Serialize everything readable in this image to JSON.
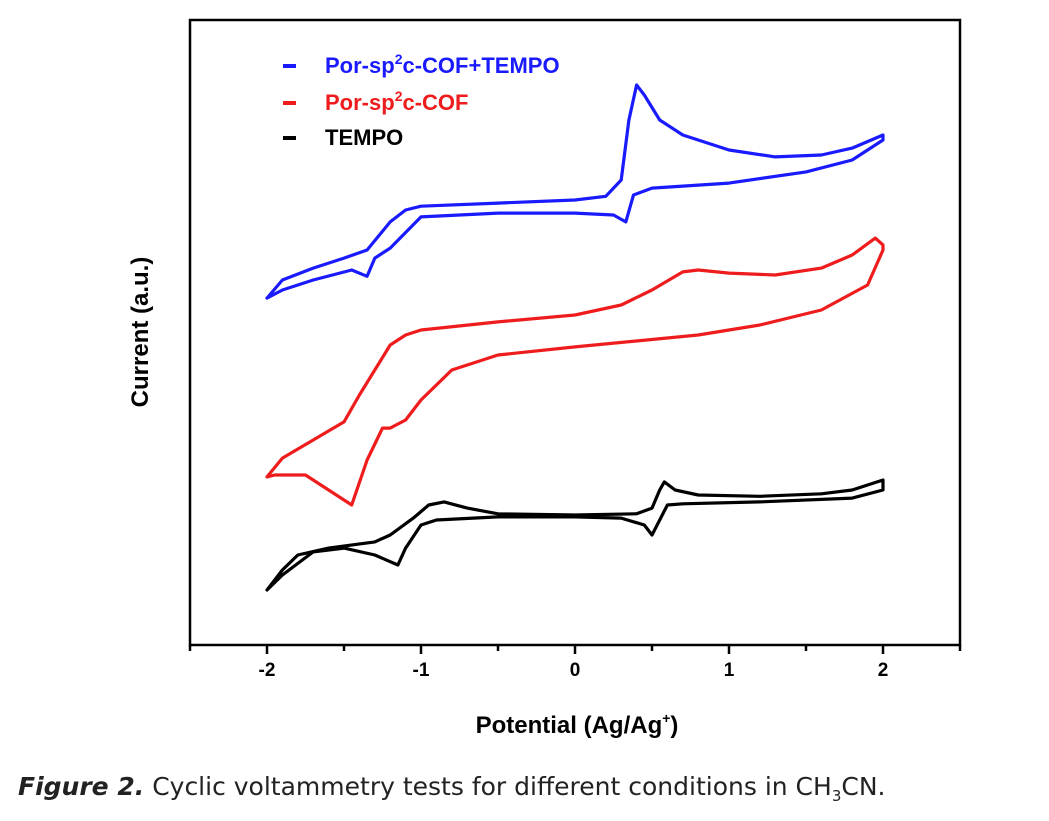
{
  "chart_data": {
    "type": "line",
    "title": "",
    "xlabel": "Potential (Ag/Ag+)",
    "xlabel_main": "Potential (Ag/Ag",
    "xlabel_sup": "+",
    "xlabel_end": ")",
    "ylabel": "Current (a.u.)",
    "xlim": [
      -2.5,
      2.5
    ],
    "ylim": [
      0,
      100
    ],
    "x_ticks": [
      -2,
      -1,
      0,
      1,
      2
    ],
    "x_tick_labels": [
      "-2",
      "-1",
      "0",
      "1",
      "2"
    ],
    "y_ticks_shown": false,
    "grid": false,
    "legend_position": "top-left",
    "series": [
      {
        "name": "Por-sp2c-COF+TEMPO",
        "legend_parts": [
          "Por-sp",
          "2",
          "c-COF+TEMPO"
        ],
        "color": "#1a1aff",
        "x": [
          -2.0,
          -1.9,
          -1.7,
          -1.5,
          -1.35,
          -1.2,
          -1.1,
          -1.0,
          -0.5,
          0.0,
          0.2,
          0.3,
          0.35,
          0.4,
          0.45,
          0.55,
          0.7,
          1.0,
          1.3,
          1.6,
          1.8,
          2.0,
          2.0,
          1.8,
          1.5,
          1.0,
          0.5,
          0.38,
          0.33,
          0.25,
          0.0,
          -0.5,
          -1.0,
          -1.2,
          -1.3,
          -1.35,
          -1.45,
          -1.7,
          -1.9,
          -2.0
        ],
        "y": [
          55.5,
          58.4,
          60.3,
          61.9,
          63.2,
          67.7,
          69.6,
          70.2,
          70.7,
          71.2,
          71.8,
          74.4,
          84.0,
          89.6,
          88.0,
          84.0,
          81.6,
          79.2,
          78.1,
          78.4,
          79.5,
          81.6,
          80.8,
          77.6,
          75.7,
          73.9,
          73.1,
          72.0,
          67.7,
          68.8,
          69.1,
          69.1,
          68.5,
          63.5,
          61.9,
          59.0,
          60.0,
          58.4,
          56.8,
          55.5
        ]
      },
      {
        "name": "Por-sp2c-COF",
        "legend_parts": [
          "Por-sp",
          "2",
          "c-COF"
        ],
        "color": "#ee1c1c",
        "x": [
          -2.0,
          -1.9,
          -1.7,
          -1.5,
          -1.4,
          -1.3,
          -1.2,
          -1.1,
          -1.0,
          -0.5,
          0.0,
          0.3,
          0.5,
          0.7,
          0.8,
          1.0,
          1.3,
          1.6,
          1.8,
          1.95,
          2.0,
          2.0,
          1.9,
          1.6,
          1.2,
          0.8,
          0.0,
          -0.5,
          -0.8,
          -1.0,
          -1.1,
          -1.2,
          -1.25,
          -1.35,
          -1.45,
          -1.55,
          -1.75,
          -1.95,
          -2.0
        ],
        "y": [
          26.9,
          29.9,
          32.8,
          35.7,
          40.0,
          44.0,
          48.0,
          49.6,
          50.4,
          51.7,
          52.8,
          54.4,
          56.8,
          59.7,
          60.0,
          59.5,
          59.2,
          60.3,
          62.4,
          65.1,
          64.0,
          63.2,
          57.6,
          53.6,
          51.2,
          49.6,
          47.7,
          46.4,
          44.0,
          39.2,
          36.0,
          34.7,
          34.7,
          29.6,
          22.4,
          24.0,
          27.2,
          27.2,
          26.9
        ]
      },
      {
        "name": "TEMPO",
        "legend_parts": [
          "TEMPO",
          "",
          ""
        ],
        "color": "#000000",
        "x": [
          -2.0,
          -1.9,
          -1.8,
          -1.6,
          -1.3,
          -1.2,
          -1.05,
          -0.95,
          -0.85,
          -0.7,
          -0.5,
          0.0,
          0.4,
          0.5,
          0.55,
          0.58,
          0.65,
          0.8,
          1.2,
          1.6,
          1.8,
          2.0,
          2.0,
          1.8,
          1.2,
          0.7,
          0.6,
          0.55,
          0.5,
          0.45,
          0.3,
          0.0,
          -0.5,
          -0.9,
          -1.0,
          -1.1,
          -1.15,
          -1.3,
          -1.5,
          -1.7,
          -1.9,
          -2.0
        ],
        "y": [
          8.8,
          12.0,
          14.4,
          15.5,
          16.5,
          17.6,
          20.3,
          22.4,
          22.9,
          21.9,
          21.0,
          20.8,
          21.0,
          21.9,
          24.8,
          26.1,
          24.8,
          24.0,
          23.8,
          24.2,
          24.8,
          26.4,
          24.8,
          23.5,
          22.9,
          22.6,
          22.4,
          20.0,
          17.6,
          19.2,
          20.3,
          20.5,
          20.5,
          20.0,
          19.2,
          15.5,
          12.8,
          14.4,
          15.5,
          14.9,
          11.2,
          8.8
        ]
      }
    ]
  },
  "caption": {
    "figure_label": "Figure 2.",
    "text_before_sub": "Cyclic voltammetry tests for different conditions in CH",
    "sub": "3",
    "text_after_sub": "CN."
  }
}
